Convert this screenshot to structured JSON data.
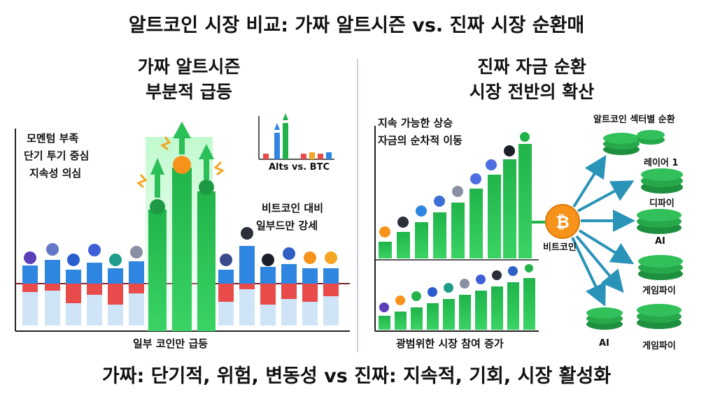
{
  "title": "알트코인 시장 비교: 가짜 알트시즌 vs. 진짜 시장 순환매",
  "footer": "가짜: 단기적, 위험, 변동성 vs 진짜: 지속적, 기회, 시장 활성화",
  "left": {
    "title_line1": "가짜 알트시즌",
    "title_line2": "부분적 급등",
    "notes": [
      "모멘텀 부족",
      "단기 투기 중심",
      "지속성 의심"
    ],
    "btc_note_line1": "비트코인 대비",
    "btc_note_line2": "일부드만 강세",
    "inset_label": "Alts vs. BTC",
    "caption": "일부 코인만 급등"
  },
  "right": {
    "title_line1": "진짜 자금 순환",
    "title_line2": "시장 전반의 확산",
    "top_note_line1": "지속 가능한 상승",
    "top_note_line2": "자금의 순차적 이동",
    "caption": "광범위한 시장 참여 증가",
    "hub_label": "비트코인",
    "sector_heading": "알트코인 섹터별 순환",
    "sectors": [
      "레이어 1",
      "디파이",
      "AI",
      "게임파이",
      "AI",
      "게임파이"
    ]
  },
  "colors": {
    "green": "#22b24c",
    "blue": "#2f86e0",
    "red": "#e94a4a",
    "teal_arrow": "#2a93b8",
    "btc_orange": "#f7931a"
  }
}
